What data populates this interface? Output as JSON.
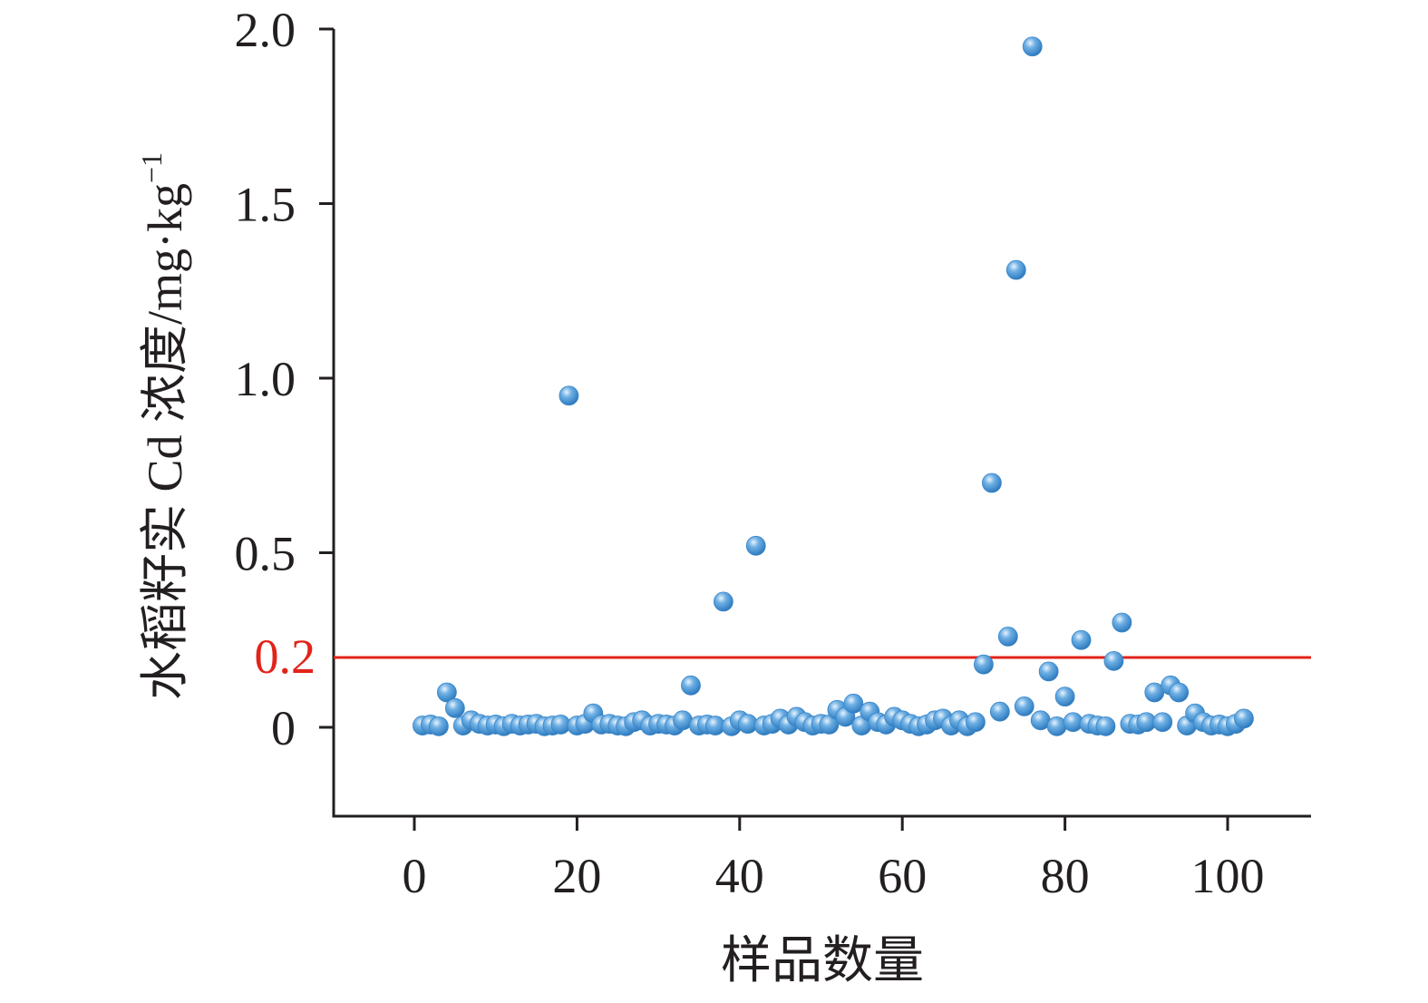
{
  "chart_data": {
    "type": "scatter",
    "title": "",
    "xlabel": "样品数量",
    "ylabel": "水稻籽实 Cd 浓度/mg·kg",
    "ylabel_superscript": "−1",
    "xlim": [
      -10,
      110
    ],
    "ylim": [
      -0.25,
      2.0
    ],
    "xticks": [
      {
        "value": 0,
        "label": "0"
      },
      {
        "value": 20,
        "label": "20"
      },
      {
        "value": 40,
        "label": "40"
      },
      {
        "value": 60,
        "label": "60"
      },
      {
        "value": 80,
        "label": "80"
      },
      {
        "value": 100,
        "label": "100"
      }
    ],
    "yticks": [
      {
        "value": 0,
        "label": "0"
      },
      {
        "value": 0.5,
        "label": "0.5"
      },
      {
        "value": 1.0,
        "label": "1.0"
      },
      {
        "value": 1.5,
        "label": "1.5"
      },
      {
        "value": 2.0,
        "label": "2.0"
      }
    ],
    "grid": false,
    "legend": "none",
    "threshold": {
      "value": 0.2,
      "label": "0.2",
      "color": "#e2231a"
    },
    "marker_color": "#3a86c8",
    "series": [
      {
        "points": [
          [
            1,
            0.005
          ],
          [
            2,
            0.008
          ],
          [
            3,
            0.003
          ],
          [
            4,
            0.1
          ],
          [
            5,
            0.055
          ],
          [
            6,
            0.005
          ],
          [
            7,
            0.02
          ],
          [
            8,
            0.01
          ],
          [
            9,
            0.005
          ],
          [
            10,
            0.008
          ],
          [
            11,
            0.003
          ],
          [
            12,
            0.01
          ],
          [
            13,
            0.005
          ],
          [
            14,
            0.008
          ],
          [
            15,
            0.01
          ],
          [
            16,
            0.003
          ],
          [
            17,
            0.005
          ],
          [
            18,
            0.008
          ],
          [
            19,
            0.95
          ],
          [
            20,
            0.005
          ],
          [
            21,
            0.01
          ],
          [
            22,
            0.04
          ],
          [
            23,
            0.008
          ],
          [
            24,
            0.01
          ],
          [
            25,
            0.005
          ],
          [
            26,
            0.003
          ],
          [
            27,
            0.015
          ],
          [
            28,
            0.02
          ],
          [
            29,
            0.005
          ],
          [
            30,
            0.01
          ],
          [
            31,
            0.008
          ],
          [
            32,
            0.005
          ],
          [
            33,
            0.02
          ],
          [
            34,
            0.12
          ],
          [
            35,
            0.005
          ],
          [
            36,
            0.008
          ],
          [
            37,
            0.005
          ],
          [
            38,
            0.36
          ],
          [
            39,
            0.003
          ],
          [
            40,
            0.02
          ],
          [
            41,
            0.01
          ],
          [
            42,
            0.52
          ],
          [
            43,
            0.005
          ],
          [
            44,
            0.01
          ],
          [
            45,
            0.025
          ],
          [
            46,
            0.008
          ],
          [
            47,
            0.03
          ],
          [
            48,
            0.015
          ],
          [
            49,
            0.005
          ],
          [
            50,
            0.01
          ],
          [
            51,
            0.008
          ],
          [
            52,
            0.05
          ],
          [
            53,
            0.03
          ],
          [
            54,
            0.068
          ],
          [
            55,
            0.005
          ],
          [
            56,
            0.045
          ],
          [
            57,
            0.015
          ],
          [
            58,
            0.008
          ],
          [
            59,
            0.03
          ],
          [
            60,
            0.02
          ],
          [
            61,
            0.01
          ],
          [
            62,
            0.003
          ],
          [
            63,
            0.008
          ],
          [
            64,
            0.02
          ],
          [
            65,
            0.025
          ],
          [
            66,
            0.005
          ],
          [
            67,
            0.02
          ],
          [
            68,
            0.003
          ],
          [
            69,
            0.015
          ],
          [
            70,
            0.18
          ],
          [
            71,
            0.7
          ],
          [
            72,
            0.045
          ],
          [
            73,
            0.26
          ],
          [
            74,
            1.31
          ],
          [
            75,
            0.06
          ],
          [
            76,
            1.95
          ],
          [
            77,
            0.02
          ],
          [
            78,
            0.16
          ],
          [
            79,
            0.003
          ],
          [
            80,
            0.088
          ],
          [
            81,
            0.015
          ],
          [
            82,
            0.25
          ],
          [
            83,
            0.01
          ],
          [
            84,
            0.005
          ],
          [
            85,
            0.003
          ],
          [
            86,
            0.19
          ],
          [
            87,
            0.3
          ],
          [
            88,
            0.01
          ],
          [
            89,
            0.008
          ],
          [
            90,
            0.015
          ],
          [
            91,
            0.1
          ],
          [
            92,
            0.015
          ],
          [
            93,
            0.12
          ],
          [
            94,
            0.1
          ],
          [
            95,
            0.005
          ],
          [
            96,
            0.04
          ],
          [
            97,
            0.015
          ],
          [
            98,
            0.005
          ],
          [
            99,
            0.008
          ],
          [
            100,
            0.003
          ],
          [
            101,
            0.01
          ],
          [
            102,
            0.025
          ]
        ]
      }
    ]
  }
}
